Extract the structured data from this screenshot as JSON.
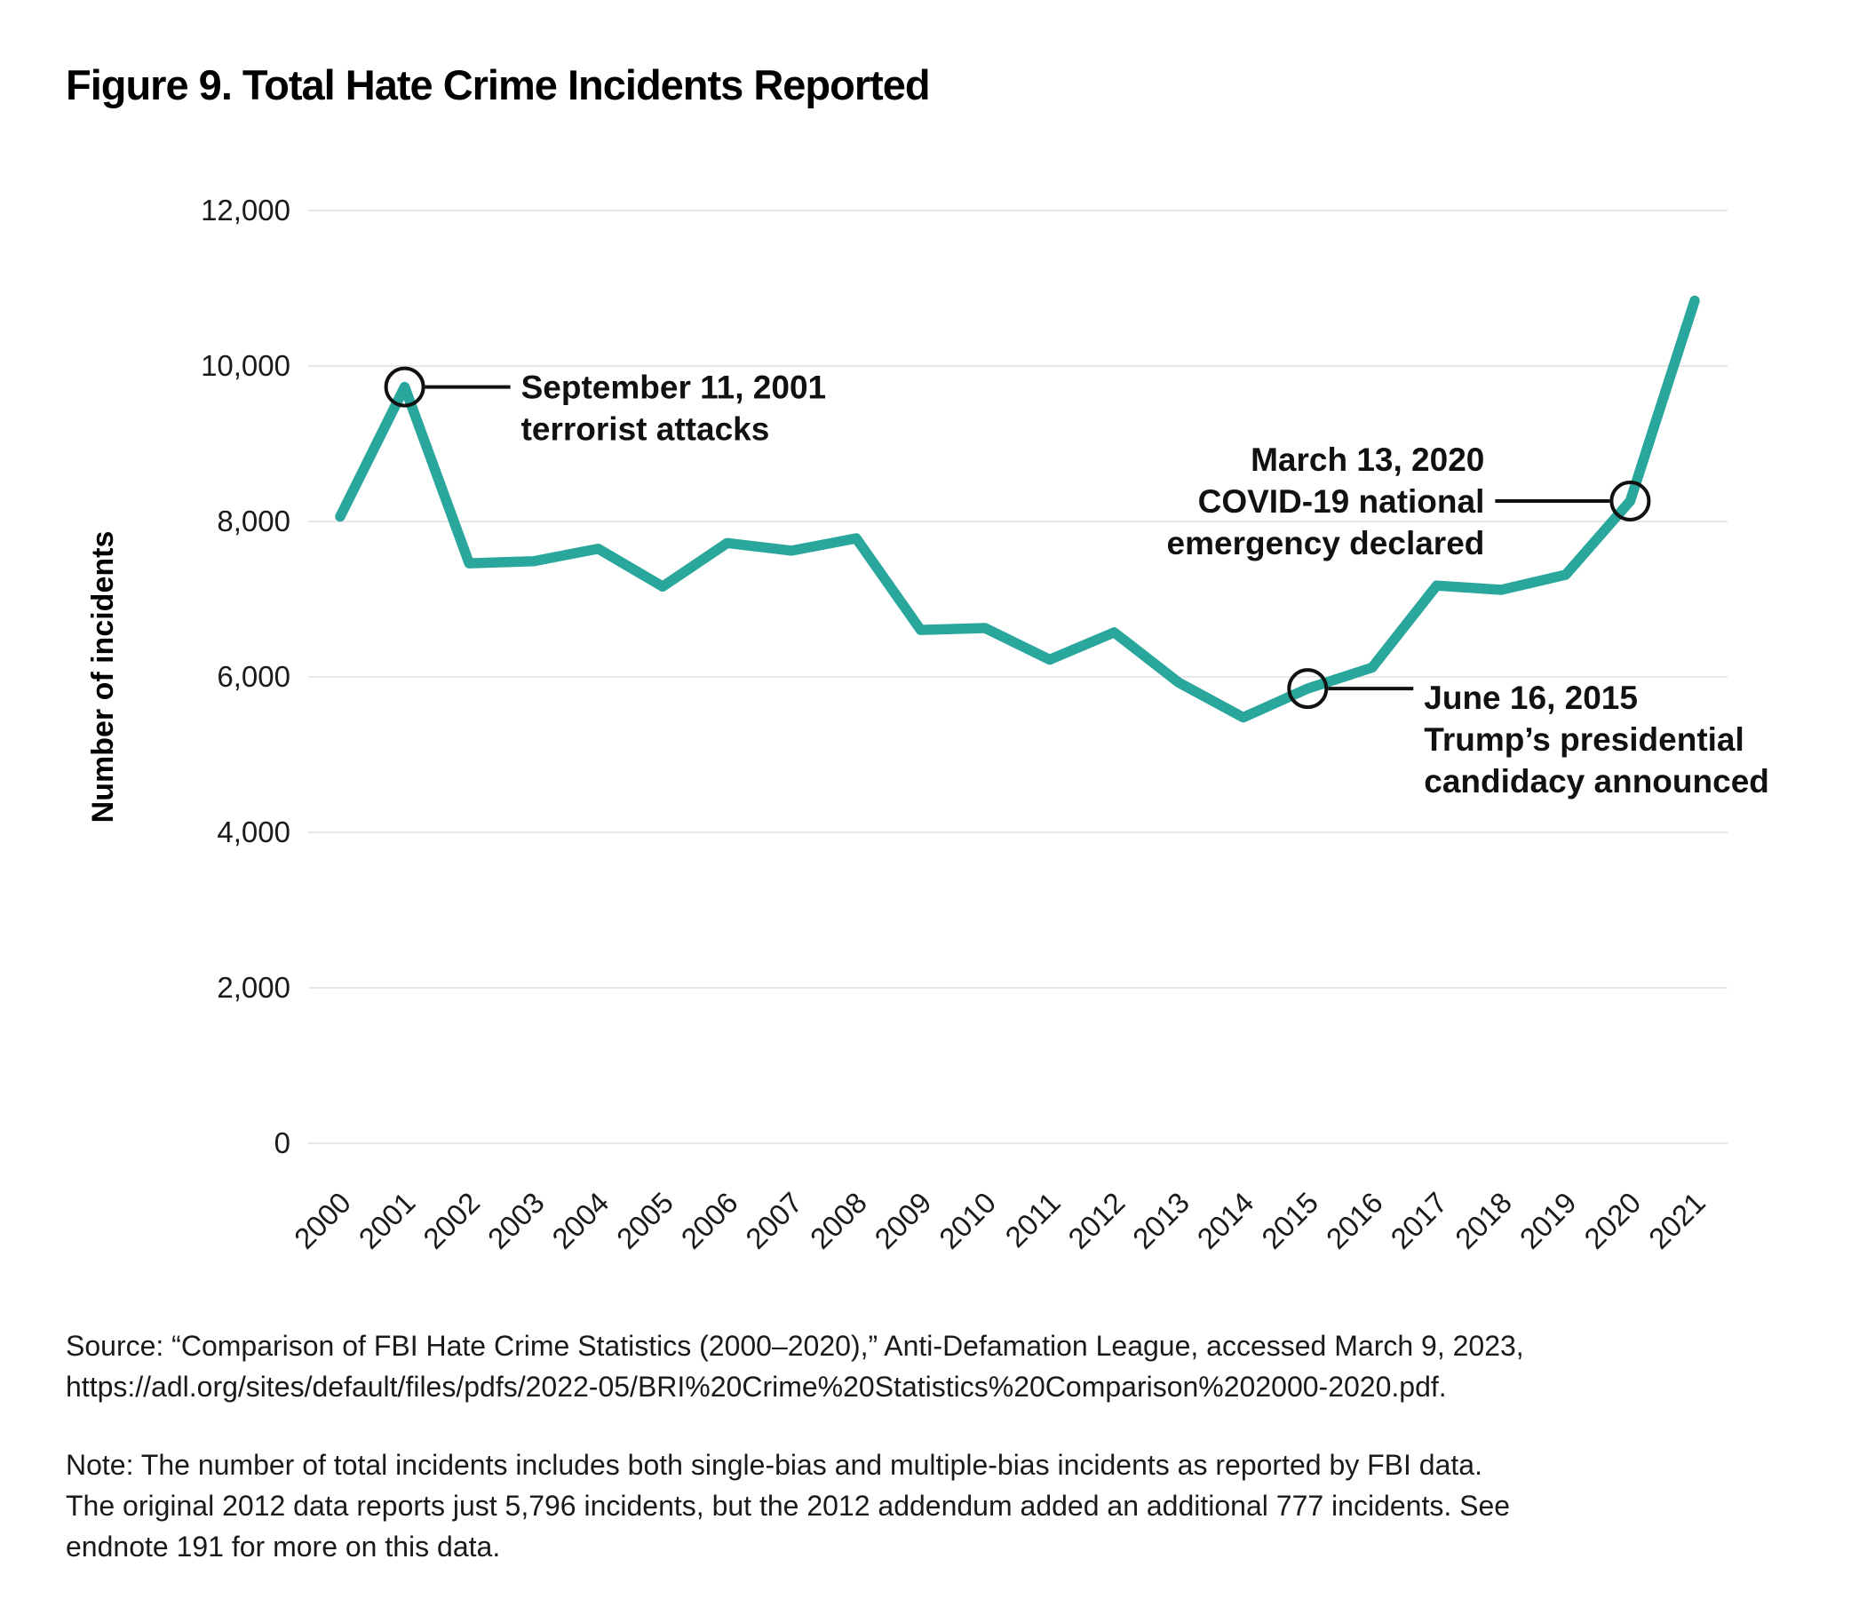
{
  "figure": {
    "title": "Figure 9. Total Hate Crime Incidents Reported"
  },
  "chart_data": {
    "type": "line",
    "title": "Figure 9. Total Hate Crime Incidents Reported",
    "xlabel": "",
    "ylabel": "Number of incidents",
    "x": [
      "2000",
      "2001",
      "2002",
      "2003",
      "2004",
      "2005",
      "2006",
      "2007",
      "2008",
      "2009",
      "2010",
      "2011",
      "2012",
      "2013",
      "2014",
      "2015",
      "2016",
      "2017",
      "2018",
      "2019",
      "2020",
      "2021"
    ],
    "series": [
      {
        "name": "Total hate crime incidents reported",
        "values": [
          8063,
          9730,
          7462,
          7489,
          7649,
          7163,
          7722,
          7624,
          7783,
          6604,
          6628,
          6222,
          6573,
          5928,
          5479,
          5850,
          6121,
          7175,
          7120,
          7314,
          8263,
          10840
        ]
      }
    ],
    "ylim": [
      0,
      12000
    ],
    "yticks": [
      {
        "value": 0,
        "label": "0"
      },
      {
        "value": 2000,
        "label": "2,000"
      },
      {
        "value": 4000,
        "label": "4,000"
      },
      {
        "value": 6000,
        "label": "6,000"
      },
      {
        "value": 8000,
        "label": "8,000"
      },
      {
        "value": 10000,
        "label": "10,000"
      },
      {
        "value": 12000,
        "label": "12,000"
      }
    ],
    "grid": "horizontal",
    "legend": "none",
    "line_color": "#29a79c",
    "grid_color": "#e7e7e7",
    "text_color": "#1a1a1a",
    "annotation_color": "#111111",
    "annotations": [
      {
        "x": "2001",
        "value": 9730,
        "side": "right",
        "text_dy": 0,
        "lines": [
          "September 11, 2001",
          "terrorist attacks"
        ]
      },
      {
        "x": "2015",
        "value": 5850,
        "side": "right",
        "text_dy": 10,
        "lines": [
          "June 16, 2015",
          "Trump’s presidential",
          "candidacy announced"
        ]
      },
      {
        "x": "2020",
        "value": 8263,
        "side": "left",
        "text_dy": -47,
        "lines": [
          "March 13, 2020",
          "COVID-19 national",
          "emergency declared"
        ]
      }
    ]
  },
  "footer": {
    "source_lines": [
      "Source: “Comparison of FBI Hate Crime Statistics (2000–2020),” Anti-Defamation League, accessed March 9, 2023,",
      "https://adl.org/sites/default/files/pdfs/2022-05/BRI%20Crime%20Statistics%20Comparison%202000-2020.pdf."
    ],
    "note_lines": [
      "Note: The number of total incidents includes both single-bias and multiple-bias incidents as reported by FBI data.",
      "The original 2012 data reports just 5,796 incidents, but the 2012 addendum added an additional 777 incidents. See",
      "endnote 191 for more on this data."
    ]
  }
}
